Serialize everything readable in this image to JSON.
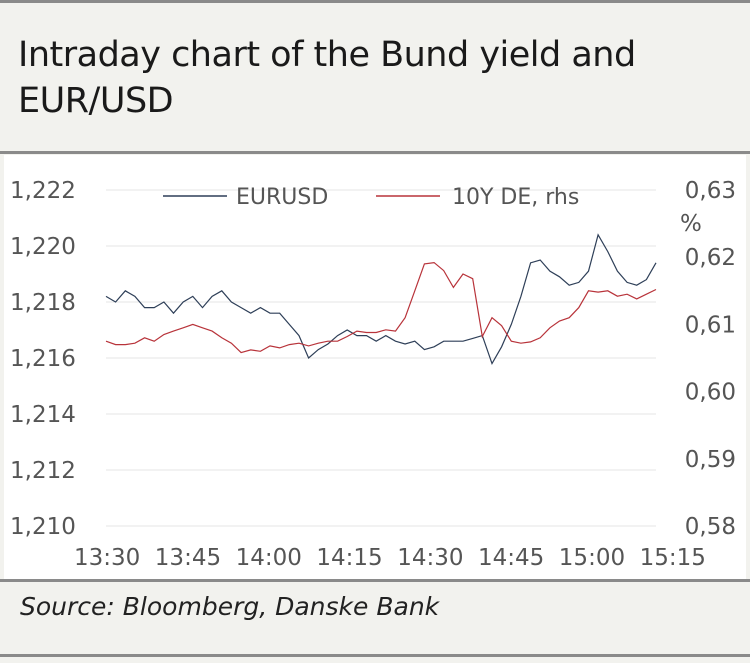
{
  "title": "Intraday chart of the Bund yield and EUR/USD",
  "source": "Source: Bloomberg, Danske Bank",
  "chart_data": {
    "type": "line",
    "x_ticks": [
      "13:30",
      "13:45",
      "14:00",
      "14:15",
      "14:30",
      "14:45",
      "15:00",
      "15:15"
    ],
    "left_axis": {
      "ticks": [
        "1,222",
        "1,220",
        "1,218",
        "1,216",
        "1,214",
        "1,212",
        "1,210"
      ],
      "min": 1.21,
      "max": 1.222
    },
    "right_axis": {
      "ticks": [
        "0,63",
        "0,62",
        "0,61",
        "0,60",
        "0,59",
        "0,58"
      ],
      "unit": "%",
      "min": 0.58,
      "max": 0.63
    },
    "grid": "horizontal",
    "legend_position": "top",
    "series": [
      {
        "name": "EURUSD",
        "axis": "left",
        "color": "#2e3f58",
        "x": [
          0,
          2,
          4,
          6,
          8,
          10,
          12,
          14,
          16,
          18,
          20,
          22,
          24,
          26,
          28,
          30,
          32,
          34,
          36,
          38,
          40,
          42,
          44,
          46,
          48,
          50,
          52,
          54,
          56,
          58,
          60,
          62,
          64,
          66,
          68,
          70,
          72,
          74,
          76,
          78,
          80,
          82,
          84,
          86,
          88,
          90,
          92,
          94,
          96,
          98,
          100,
          102,
          104,
          106,
          108,
          110,
          112,
          114
        ],
        "values": [
          1.2182,
          1.218,
          1.2184,
          1.2182,
          1.2178,
          1.2178,
          1.218,
          1.2176,
          1.218,
          1.2182,
          1.2178,
          1.2182,
          1.2184,
          1.218,
          1.2178,
          1.2176,
          1.2178,
          1.2176,
          1.2176,
          1.2172,
          1.2168,
          1.216,
          1.2163,
          1.2165,
          1.2168,
          1.217,
          1.2168,
          1.2168,
          1.2166,
          1.2168,
          1.2166,
          1.2165,
          1.2166,
          1.2163,
          1.2164,
          1.2166,
          1.2166,
          1.2166,
          1.2167,
          1.2168,
          1.2158,
          1.2164,
          1.2172,
          1.2182,
          1.2194,
          1.2195,
          1.2191,
          1.2189,
          1.2186,
          1.2187,
          1.2191,
          1.2204,
          1.2198,
          1.2191,
          1.2187,
          1.2186,
          1.2188,
          1.2194
        ]
      },
      {
        "name": "10Y DE, rhs",
        "axis": "right",
        "color": "#b8333a",
        "x": [
          0,
          2,
          4,
          6,
          8,
          10,
          12,
          14,
          16,
          18,
          20,
          22,
          24,
          26,
          28,
          30,
          32,
          34,
          36,
          38,
          40,
          42,
          44,
          46,
          48,
          50,
          52,
          54,
          56,
          58,
          60,
          62,
          64,
          66,
          68,
          70,
          72,
          74,
          76,
          78,
          80,
          82,
          84,
          86,
          88,
          90,
          92,
          94,
          96,
          98,
          100,
          102,
          104,
          106,
          108,
          110,
          112,
          114
        ],
        "values": [
          0.6075,
          0.607,
          0.607,
          0.6072,
          0.608,
          0.6075,
          0.6085,
          0.609,
          0.6095,
          0.61,
          0.6095,
          0.609,
          0.608,
          0.6072,
          0.6058,
          0.6062,
          0.606,
          0.6068,
          0.6065,
          0.607,
          0.6072,
          0.6068,
          0.6072,
          0.6075,
          0.6075,
          0.6082,
          0.609,
          0.6088,
          0.6088,
          0.6092,
          0.609,
          0.611,
          0.615,
          0.619,
          0.6192,
          0.618,
          0.6155,
          0.6175,
          0.6168,
          0.6082,
          0.611,
          0.6098,
          0.6075,
          0.6072,
          0.6074,
          0.608,
          0.6095,
          0.6105,
          0.611,
          0.6125,
          0.615,
          0.6148,
          0.615,
          0.6142,
          0.6145,
          0.6138,
          0.6145,
          0.6152
        ]
      }
    ]
  }
}
